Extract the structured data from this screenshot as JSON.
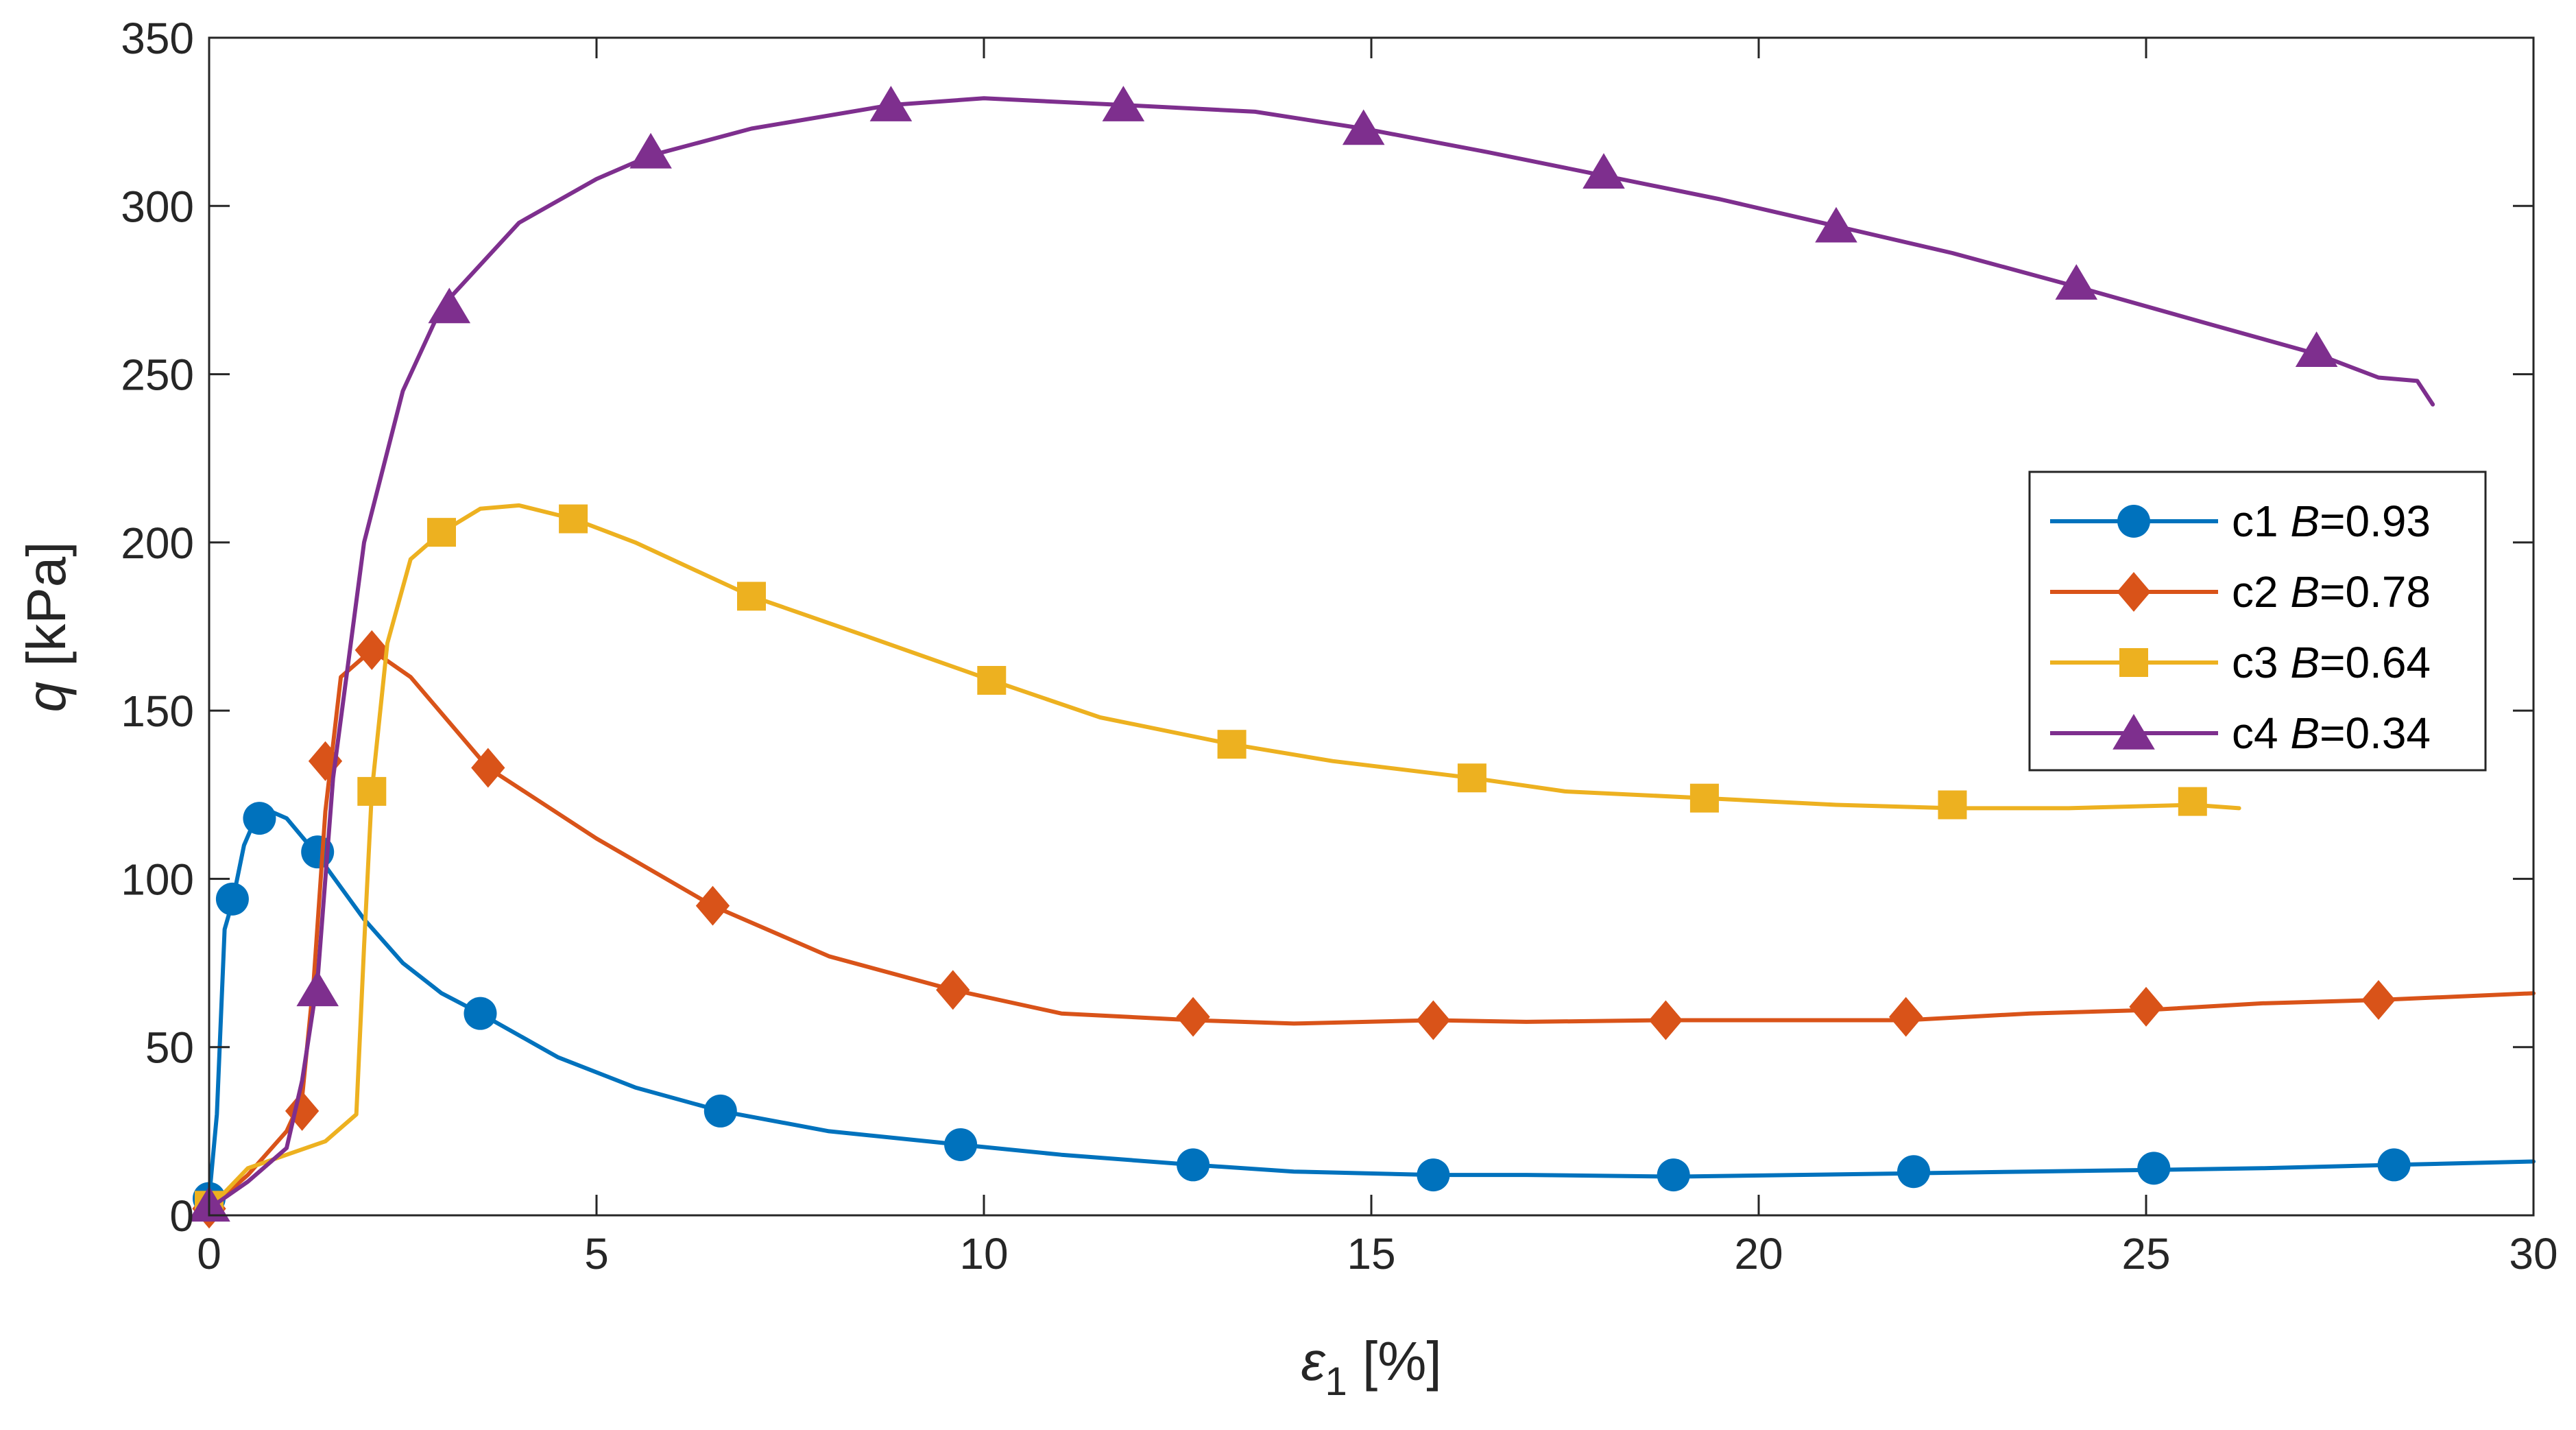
{
  "chart_data": {
    "type": "line",
    "title": "",
    "xlabel": {
      "symbol": "ε",
      "subscript": "1",
      "unit": " [%]"
    },
    "ylabel": {
      "symbol": "q",
      "unit": " [kPa]"
    },
    "xlim": [
      0,
      30
    ],
    "ylim": [
      0,
      350
    ],
    "xticks": [
      0,
      5,
      10,
      15,
      20,
      25,
      30
    ],
    "yticks": [
      0,
      50,
      100,
      150,
      200,
      250,
      300,
      350
    ],
    "grid": false,
    "legend_position": "center-right",
    "series": [
      {
        "id": "c1",
        "name": "c1",
        "param": "B",
        "param_value": "=0.93",
        "color": "#0072BD",
        "marker": "circle",
        "x": [
          0,
          0.1,
          0.2,
          0.3,
          0.45,
          0.6,
          0.8,
          1.0,
          1.4,
          2.0,
          2.5,
          3.0,
          3.5,
          4.5,
          5.5,
          6.6,
          8.0,
          9.7,
          11.0,
          12.7,
          14.0,
          15.8,
          17.0,
          18.9,
          20.5,
          22.0,
          23.5,
          25.1,
          26.5,
          28.2,
          30.0
        ],
        "y": [
          5,
          30,
          85,
          93,
          110,
          118,
          120,
          118,
          107,
          88,
          75,
          66,
          60,
          47,
          38,
          31,
          25,
          21,
          18,
          15,
          13,
          12,
          12,
          11.5,
          12,
          12.5,
          13,
          13.5,
          14,
          15,
          16
        ],
        "marker_x": [
          0,
          0.3,
          0.65,
          1.4,
          3.5,
          6.6,
          9.7,
          12.7,
          15.8,
          18.9,
          22.0,
          25.1,
          28.2
        ],
        "marker_y": [
          5,
          94,
          118,
          108,
          60,
          31,
          21,
          15,
          12,
          12,
          13,
          14,
          15
        ]
      },
      {
        "id": "c2",
        "name": "c2",
        "param": "B",
        "param_value": "=0.78",
        "color": "#D95319",
        "marker": "diamond",
        "x": [
          0,
          0.5,
          1.0,
          1.2,
          1.35,
          1.5,
          1.7,
          2.1,
          2.6,
          3.6,
          5.0,
          6.5,
          8.0,
          9.6,
          11.0,
          12.7,
          14.0,
          15.8,
          17.0,
          18.8,
          20.0,
          21.9,
          23.5,
          25.0,
          26.5,
          28.0,
          30.0
        ],
        "y": [
          2,
          12,
          25,
          35,
          70,
          120,
          160,
          168,
          160,
          133,
          112,
          92,
          77,
          67,
          60,
          58,
          57,
          58,
          57.5,
          58,
          58,
          58,
          60,
          61,
          63,
          64,
          66
        ],
        "marker_x": [
          0,
          1.2,
          1.5,
          2.1,
          3.6,
          6.5,
          9.6,
          12.7,
          15.8,
          18.8,
          21.9,
          25.0,
          28.0
        ],
        "marker_y": [
          2,
          31,
          135,
          168,
          133,
          92,
          67,
          59,
          58,
          58,
          59,
          62,
          64
        ]
      },
      {
        "id": "c3",
        "name": "c3",
        "param": "B",
        "param_value": "=0.64",
        "color": "#EDB120",
        "marker": "square",
        "x": [
          0,
          0.5,
          1.0,
          1.5,
          1.9,
          2.0,
          2.1,
          2.3,
          2.6,
          3.0,
          3.5,
          4.0,
          4.7,
          5.5,
          7.0,
          8.5,
          10.1,
          11.5,
          13.2,
          14.5,
          16.3,
          17.5,
          19.3,
          21.0,
          22.5,
          24.0,
          25.6,
          26.2
        ],
        "y": [
          2,
          14,
          18,
          22,
          30,
          80,
          126,
          170,
          195,
          203,
          210,
          211,
          207,
          200,
          184,
          172,
          159,
          148,
          140,
          135,
          130,
          126,
          124,
          122,
          121,
          121,
          122,
          121
        ],
        "marker_x": [
          0,
          2.1,
          3.0,
          4.7,
          7.0,
          10.1,
          13.2,
          16.3,
          19.3,
          22.5,
          25.6
        ],
        "marker_y": [
          3,
          126,
          203,
          207,
          184,
          159,
          140,
          130,
          124,
          122,
          123
        ]
      },
      {
        "id": "c4",
        "name": "c4",
        "param": "B",
        "param_value": "=0.34",
        "color": "#7E2F8E",
        "marker": "triangle",
        "x": [
          0,
          0.5,
          1.0,
          1.2,
          1.4,
          1.6,
          2.0,
          2.5,
          3.0,
          4.0,
          5.0,
          5.7,
          7.0,
          8.8,
          10.0,
          11.8,
          13.5,
          14.9,
          16.5,
          18.0,
          19.5,
          21.0,
          22.5,
          24.1,
          25.8,
          27.2,
          28.0,
          28.5,
          28.7
        ],
        "y": [
          2,
          10,
          20,
          40,
          70,
          130,
          200,
          245,
          270,
          295,
          308,
          315,
          323,
          330,
          332,
          330,
          328,
          323,
          316,
          309,
          302,
          294,
          286,
          276,
          265,
          256,
          249,
          248,
          241
        ],
        "marker_x": [
          0,
          1.4,
          3.1,
          5.7,
          8.8,
          11.8,
          14.9,
          18.0,
          21.0,
          24.1,
          27.2
        ],
        "marker_y": [
          3,
          67,
          270,
          316,
          330,
          330,
          323,
          310,
          294,
          277,
          257
        ]
      }
    ]
  }
}
